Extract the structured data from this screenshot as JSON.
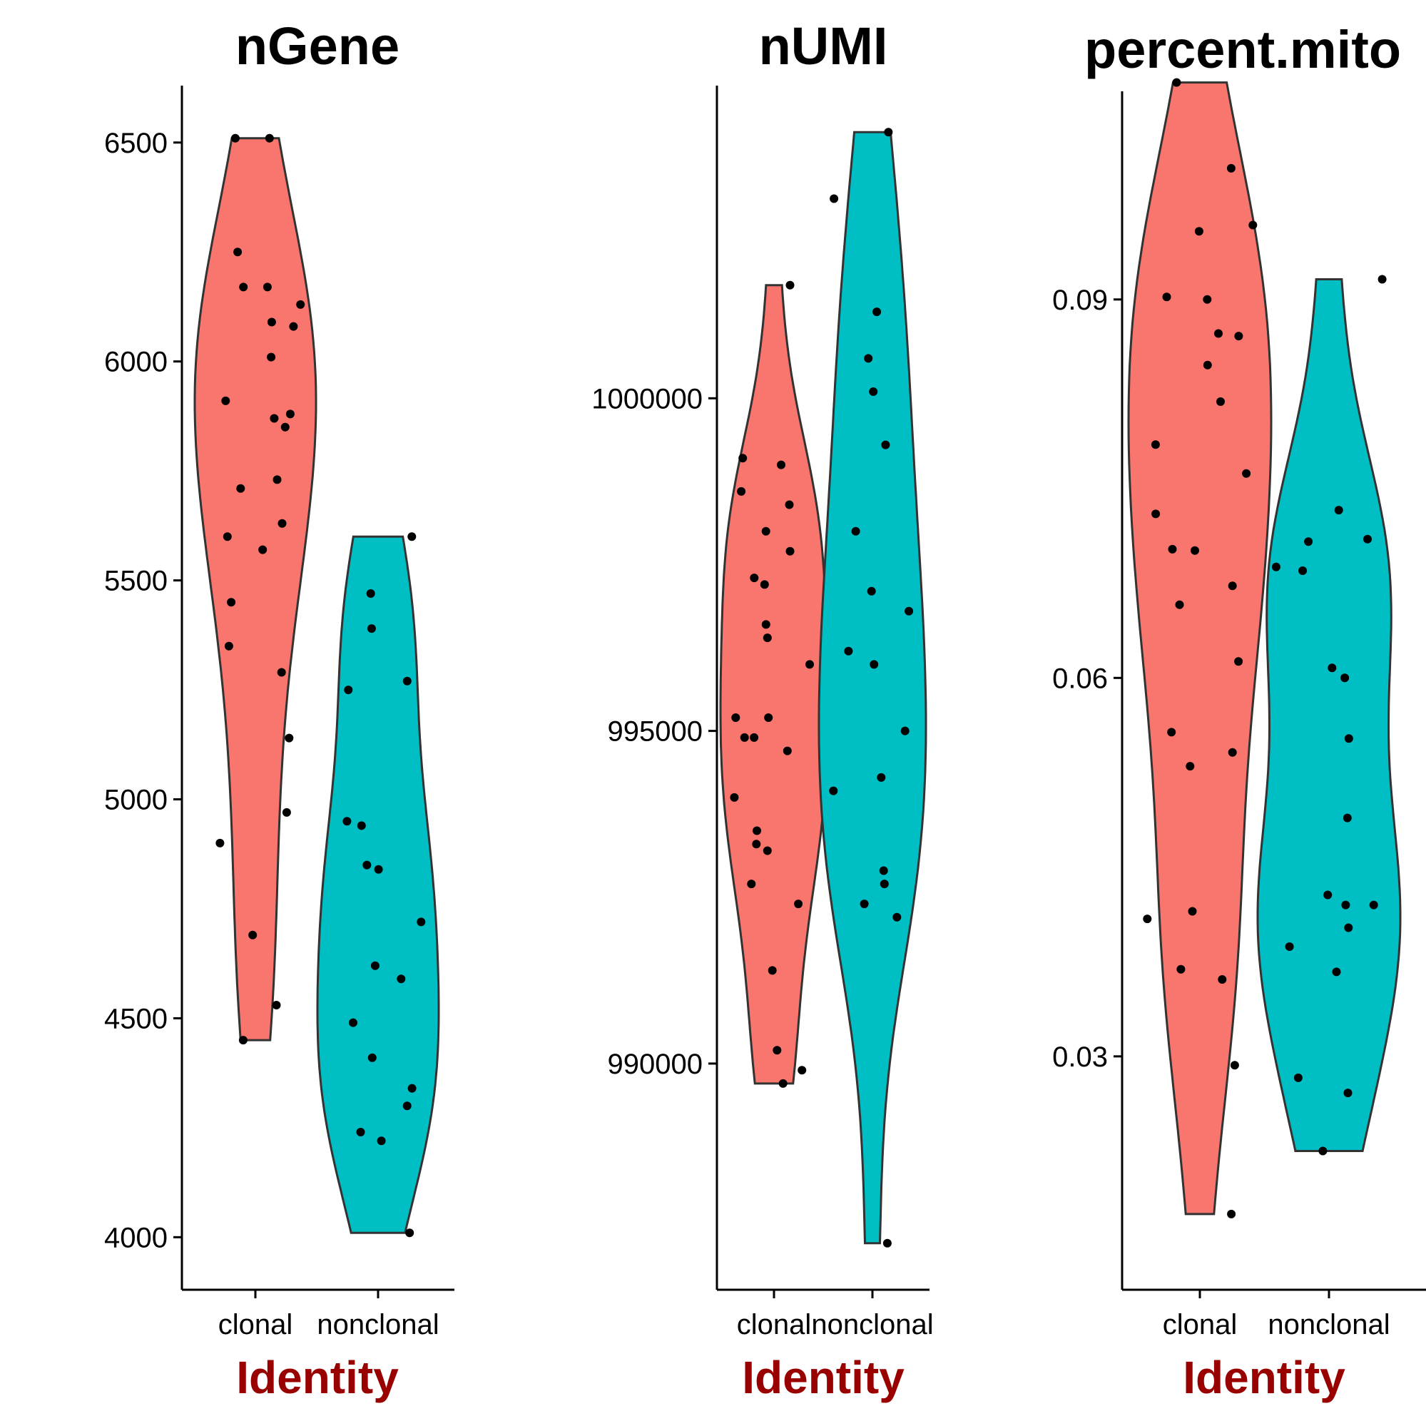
{
  "colors": {
    "clonal": "#F8766D",
    "nonclonal": "#00BFC4",
    "outline": "#333333",
    "axis_label": "#990000",
    "point": "#000000"
  },
  "chart_data": [
    {
      "type": "violin",
      "title": "nGene",
      "xlabel": "Identity",
      "ylabel": "",
      "categories": [
        "clonal",
        "nonclonal"
      ],
      "yticks": [
        "4000",
        "4500",
        "5000",
        "5500",
        "6000",
        "6500"
      ],
      "ytick_values": [
        4000,
        4500,
        5000,
        5500,
        6000,
        6500
      ],
      "ylim": [
        3880,
        6630
      ],
      "series": [
        {
          "category": "clonal",
          "values": [
            6510,
            6250,
            6170,
            6130,
            6090,
            6010,
            5910,
            5880,
            5870,
            5850,
            5730,
            5710,
            5630,
            5600,
            5570,
            5450,
            5350,
            5290,
            5140,
            4970,
            4900,
            4690,
            4530,
            4450,
            6510,
            6170,
            6080
          ]
        },
        {
          "category": "nonclonal",
          "values": [
            5600,
            5470,
            5390,
            5270,
            5250,
            4950,
            4940,
            4850,
            4840,
            4720,
            4620,
            4590,
            4490,
            4410,
            4340,
            4300,
            4240,
            4220,
            4010
          ]
        }
      ]
    },
    {
      "type": "violin",
      "title": "nUMI",
      "xlabel": "Identity",
      "ylabel": "",
      "categories": [
        "clonal",
        "nonclonal"
      ],
      "yticks": [
        "990000",
        "995000",
        "1000000"
      ],
      "ytick_values": [
        990000,
        995000,
        1000000
      ],
      "ylim": [
        986600,
        1004700
      ],
      "series": [
        {
          "category": "clonal",
          "values": [
            1001700,
            999100,
            999000,
            998600,
            998400,
            998000,
            997700,
            997300,
            997200,
            996600,
            996400,
            996000,
            995200,
            995200,
            994900,
            994900,
            994700,
            994000,
            993500,
            993300,
            993200,
            992700,
            992400,
            991400,
            990200,
            989900,
            989700
          ]
        },
        {
          "category": "nonclonal",
          "values": [
            1004000,
            1003000,
            1001300,
            1000600,
            1000100,
            999300,
            998000,
            997100,
            996800,
            996200,
            996000,
            995000,
            994300,
            994100,
            992900,
            992700,
            992400,
            992200,
            987300
          ]
        }
      ]
    },
    {
      "type": "violin",
      "title": "percent.mito",
      "xlabel": "Identity",
      "ylabel": "",
      "categories": [
        "clonal",
        "nonclonal"
      ],
      "yticks": [
        "0.03",
        "0.06",
        "0.09"
      ],
      "ytick_values": [
        0.03,
        0.06,
        0.09
      ],
      "ylim": [
        0.0115,
        0.1065
      ],
      "series": [
        {
          "category": "clonal",
          "values": [
            0.1072,
            0.1004,
            0.0959,
            0.0954,
            0.0902,
            0.09,
            0.0873,
            0.0871,
            0.0848,
            0.0819,
            0.0785,
            0.0762,
            0.073,
            0.0702,
            0.0701,
            0.0673,
            0.0658,
            0.0613,
            0.0557,
            0.0541,
            0.053,
            0.0415,
            0.0409,
            0.0369,
            0.0361,
            0.0293,
            0.0175
          ]
        },
        {
          "category": "nonclonal",
          "values": [
            0.0916,
            0.0733,
            0.071,
            0.0708,
            0.0688,
            0.0685,
            0.0608,
            0.06,
            0.0552,
            0.0489,
            0.0428,
            0.042,
            0.042,
            0.0402,
            0.0387,
            0.0367,
            0.0283,
            0.0271,
            0.0225
          ]
        }
      ]
    }
  ]
}
